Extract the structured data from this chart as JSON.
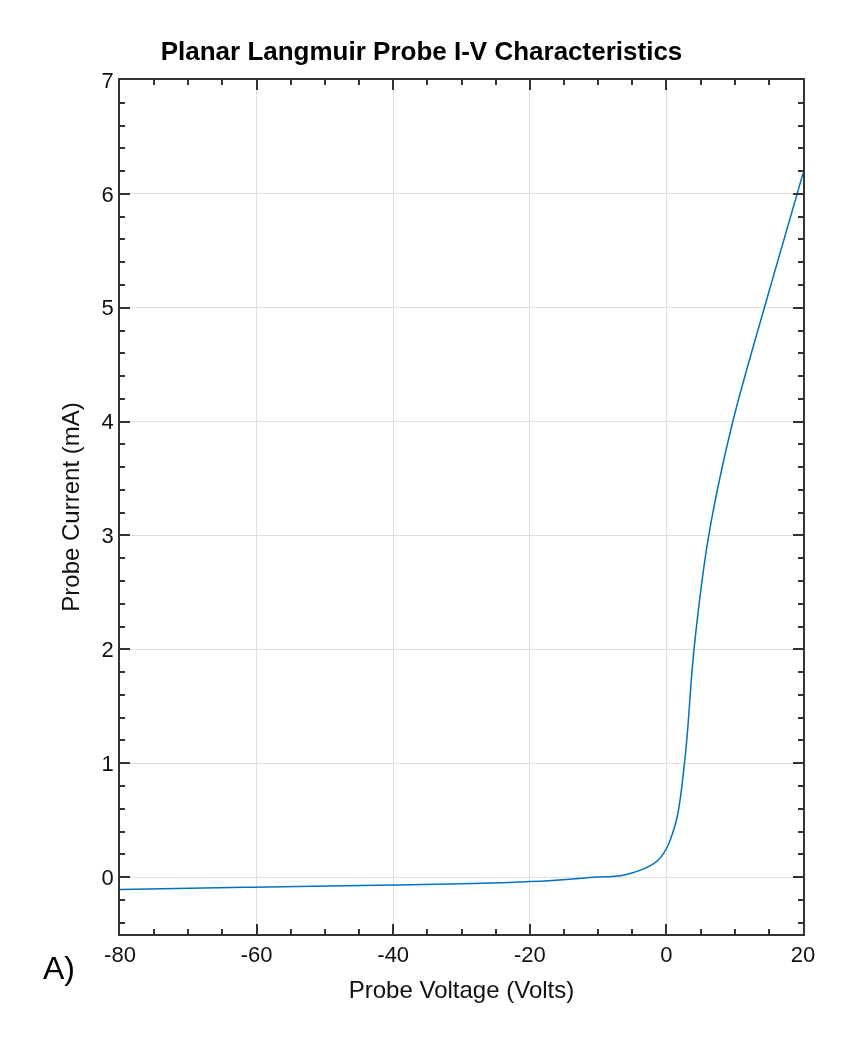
{
  "chart_data": {
    "type": "line",
    "title": "Planar Langmuir Probe I-V Characteristics",
    "xlabel": "Probe Voltage (Volts)",
    "ylabel": "Probe Current (mA)",
    "annotations": [
      "A)"
    ],
    "x": [
      -80,
      -61.6,
      -40,
      -20,
      -10.3,
      -6,
      -1.2,
      1.2,
      2.7,
      4.06,
      6.2,
      9.6,
      14.15,
      20
    ],
    "series": [
      {
        "color": "#0072bd",
        "values": [
          -0.11,
          -0.09,
          -0.07,
          -0.04,
          0,
          0.02,
          0.15,
          0.44,
          1.03,
          2.01,
          3.0,
          3.97,
          4.96,
          6.18
        ]
      }
    ],
    "xlim": [
      -80,
      20
    ],
    "xticks": [
      -80,
      -60,
      -40,
      -20,
      0,
      20
    ],
    "ylim": [
      -0.5,
      7
    ],
    "yticks": [
      0,
      1,
      2,
      3,
      4,
      5,
      6,
      7
    ],
    "grid": true,
    "marker": "none",
    "line_style": "solid"
  }
}
